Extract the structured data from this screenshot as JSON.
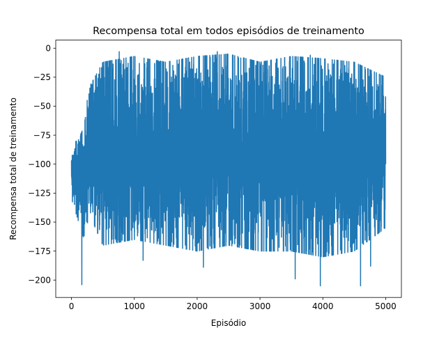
{
  "chart_data": {
    "type": "line",
    "title": "Recompensa total em todos episódios de treinamento",
    "xlabel": "Episódio",
    "ylabel": "Recompensa total de treinamento",
    "xlim": [
      -250,
      5250
    ],
    "ylim": [
      -215,
      7
    ],
    "xticks": [
      0,
      1000,
      2000,
      3000,
      4000,
      5000
    ],
    "xtick_labels": [
      "0",
      "1000",
      "2000",
      "3000",
      "4000",
      "5000"
    ],
    "yticks": [
      0,
      -25,
      -50,
      -75,
      -100,
      -125,
      -150,
      -175,
      -200
    ],
    "ytick_labels": [
      "0",
      "−25",
      "−50",
      "−75",
      "−100",
      "−125",
      "−150",
      "−175",
      "−200"
    ],
    "grid": false,
    "series": [
      {
        "color": "#1f77b4",
        "n_episodes": 5000,
        "notable_points": [
          {
            "x": 0,
            "y": -97
          },
          {
            "x": 130,
            "y": -83
          },
          {
            "x": 165,
            "y": -204
          },
          {
            "x": 250,
            "y": -45
          },
          {
            "x": 510,
            "y": -168
          },
          {
            "x": 760,
            "y": -3
          },
          {
            "x": 1140,
            "y": -183
          },
          {
            "x": 2100,
            "y": -189
          },
          {
            "x": 2320,
            "y": -3
          },
          {
            "x": 3560,
            "y": -199
          },
          {
            "x": 3800,
            "y": -6
          },
          {
            "x": 3960,
            "y": -205
          },
          {
            "x": 4600,
            "y": -205
          },
          {
            "x": 4760,
            "y": -188
          },
          {
            "x": 5000,
            "y": -100
          }
        ],
        "envelope": [
          {
            "x": 0,
            "low": -125,
            "high": -97
          },
          {
            "x": 200,
            "low": -160,
            "high": -70
          },
          {
            "x": 300,
            "low": -140,
            "high": -35
          },
          {
            "x": 500,
            "low": -165,
            "high": -15
          },
          {
            "x": 1000,
            "low": -160,
            "high": -10
          },
          {
            "x": 1500,
            "low": -165,
            "high": -15
          },
          {
            "x": 2000,
            "low": -170,
            "high": -10
          },
          {
            "x": 2500,
            "low": -165,
            "high": -8
          },
          {
            "x": 3000,
            "low": -170,
            "high": -15
          },
          {
            "x": 3500,
            "low": -170,
            "high": -10
          },
          {
            "x": 4000,
            "low": -175,
            "high": -12
          },
          {
            "x": 4500,
            "low": -170,
            "high": -15
          },
          {
            "x": 5000,
            "low": -150,
            "high": -28
          }
        ]
      }
    ]
  }
}
